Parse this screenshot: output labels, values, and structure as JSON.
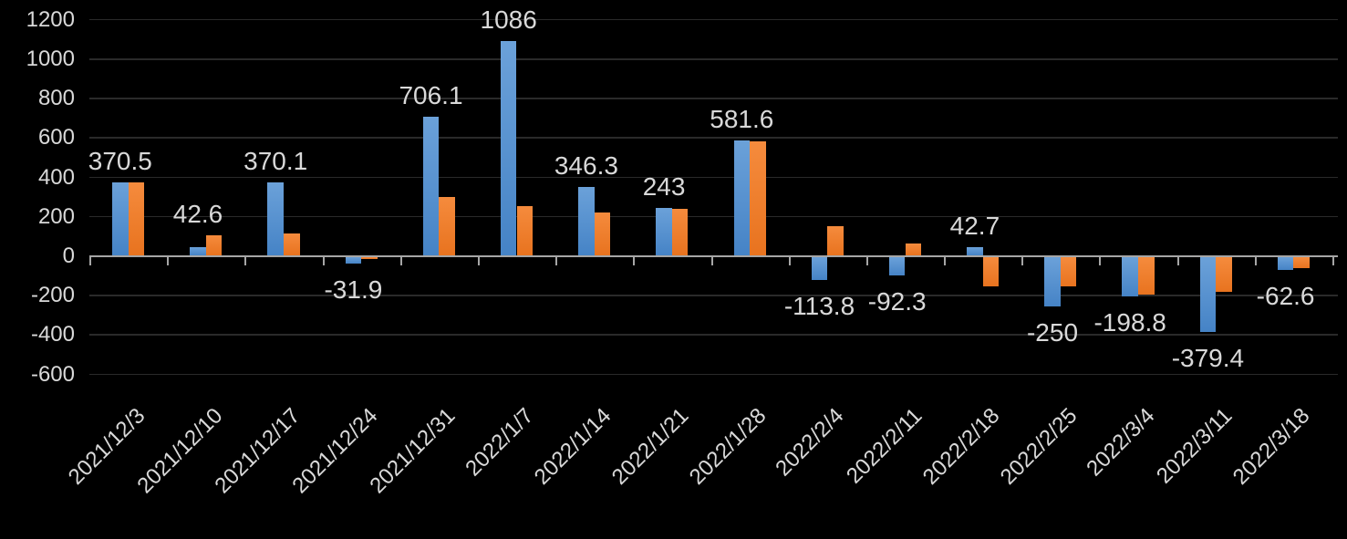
{
  "chart_data": {
    "type": "bar",
    "title": "",
    "xlabel": "",
    "ylabel": "",
    "categories": [
      "2021/12/3",
      "2021/12/10",
      "2021/12/17",
      "2021/12/24",
      "2021/12/31",
      "2022/1/7",
      "2022/1/14",
      "2022/1/21",
      "2022/1/28",
      "2022/2/4",
      "2022/2/11",
      "2022/2/18",
      "2022/2/25",
      "2022/3/4",
      "2022/3/11",
      "2022/3/18"
    ],
    "series": [
      {
        "name": "blue-series",
        "color": "#4583C6",
        "color_gradient_top": "#6BA1D9",
        "values": [
          370.5,
          42.6,
          370.1,
          -31.9,
          706.1,
          1086,
          346.3,
          243,
          581.6,
          -113.8,
          -92.3,
          42.7,
          -250,
          -198.8,
          -379.4,
          -62.6
        ]
      },
      {
        "name": "orange-series",
        "color": "#E8731F",
        "color_gradient_top": "#F58B3D",
        "values": [
          370,
          100,
          110,
          -10,
          295,
          250,
          220,
          235,
          580,
          150,
          60,
          -150,
          -150,
          -190,
          -175,
          -55
        ]
      }
    ],
    "data_labels": [
      "370.5",
      "42.6",
      "370.1",
      "-31.9",
      "706.1",
      "1086",
      "346.3",
      "243",
      "581.6",
      "-113.8",
      "-92.3",
      "42.7",
      "-250",
      "-198.8",
      "-379.4",
      "-62.6"
    ],
    "data_labels_series": "blue-series",
    "y_tick_labels": [
      "1200",
      "1000",
      "800",
      "600",
      "400",
      "200",
      "0",
      "-200",
      "-400",
      "-600"
    ],
    "y_ticks": [
      1200,
      1000,
      800,
      600,
      400,
      200,
      0,
      -200,
      -400,
      -600
    ],
    "ylim": [
      -600,
      1200
    ],
    "grid": true,
    "legend_position": "none",
    "background_color": "#000000",
    "text_color": "#D9D9D9",
    "gridline_color": "#2A2A2A",
    "axis_color": "#A6A6A6"
  }
}
